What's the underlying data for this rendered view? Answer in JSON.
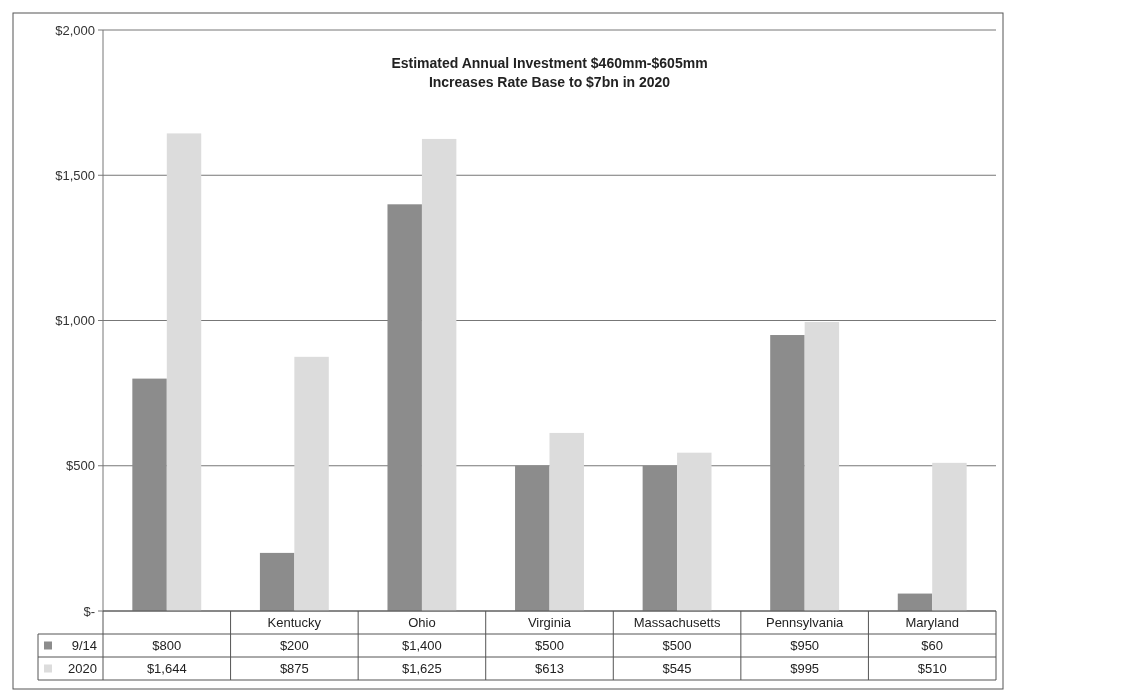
{
  "chart_data": {
    "type": "bar",
    "title": "Estimated Annual Investment $460mm-$605mm\nIncreases Rate Base to $7bn in 2020",
    "categories": [
      null,
      "Kentucky",
      "Ohio",
      "Virginia",
      "Massachusetts",
      "Pennsylvania",
      "Maryland"
    ],
    "series": [
      {
        "name": "9/14",
        "color": "#8c8c8c",
        "values": [
          800,
          200,
          1400,
          500,
          500,
          950,
          60
        ],
        "value_labels": [
          "$800",
          "$200",
          "$1,400",
          "$500",
          "$500",
          "$950",
          "$60"
        ]
      },
      {
        "name": "2020",
        "color": "#dcdcdc",
        "values": [
          1644,
          875,
          1625,
          613,
          545,
          995,
          510
        ],
        "value_labels": [
          "$1,644",
          "$875",
          "$1,625",
          "$613",
          "$545",
          "$995",
          "$510"
        ]
      }
    ],
    "ylim": [
      0,
      2000
    ],
    "yticks": [
      {
        "value": 0,
        "label": "$-"
      },
      {
        "value": 500,
        "label": "$500"
      },
      {
        "value": 1000,
        "label": "$1,000"
      },
      {
        "value": 1500,
        "label": "$1,500"
      },
      {
        "value": 2000,
        "label": "$2,000"
      }
    ],
    "grid": "y",
    "legend": "bottom"
  }
}
